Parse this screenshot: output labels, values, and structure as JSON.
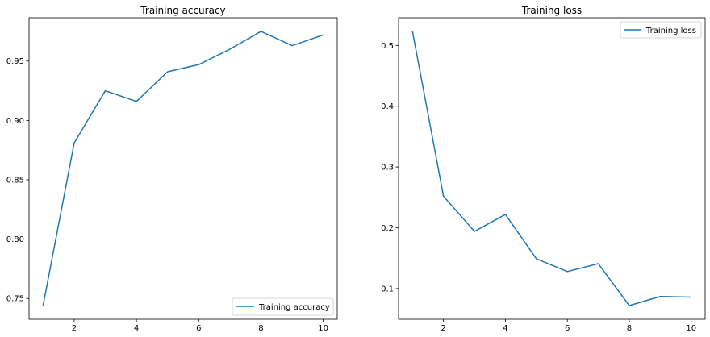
{
  "chart_data": [
    {
      "type": "line",
      "title": "Training accuracy",
      "xlabel": "",
      "ylabel": "",
      "x": [
        1,
        2,
        3,
        4,
        5,
        6,
        7,
        8,
        9,
        10
      ],
      "series": [
        {
          "name": "Training accuracy",
          "values": [
            0.744,
            0.881,
            0.925,
            0.916,
            0.941,
            0.947,
            0.96,
            0.975,
            0.963,
            0.972
          ],
          "color": "#1f77b4"
        }
      ],
      "xticks": [
        2,
        4,
        6,
        8,
        10
      ],
      "yticks": [
        0.75,
        0.8,
        0.85,
        0.9,
        0.95
      ],
      "ytick_labels": [
        "0.75",
        "0.80",
        "0.85",
        "0.90",
        "0.95"
      ],
      "xlim": [
        0.55,
        10.45
      ],
      "ylim": [
        0.7325,
        0.9865
      ],
      "grid": false,
      "legend_position": "lower-right"
    },
    {
      "type": "line",
      "title": "Training loss",
      "xlabel": "",
      "ylabel": "",
      "x": [
        1,
        2,
        3,
        4,
        5,
        6,
        7,
        8,
        9,
        10
      ],
      "series": [
        {
          "name": "Training loss",
          "values": [
            0.523,
            0.252,
            0.194,
            0.222,
            0.149,
            0.128,
            0.141,
            0.072,
            0.087,
            0.086
          ],
          "color": "#1f77b4"
        }
      ],
      "xticks": [
        2,
        4,
        6,
        8,
        10
      ],
      "yticks": [
        0.1,
        0.2,
        0.3,
        0.4,
        0.5
      ],
      "ytick_labels": [
        "0.1",
        "0.2",
        "0.3",
        "0.4",
        "0.5"
      ],
      "xlim": [
        0.55,
        10.45
      ],
      "ylim": [
        0.0495,
        0.5455
      ],
      "grid": false,
      "legend_position": "upper-right"
    }
  ]
}
